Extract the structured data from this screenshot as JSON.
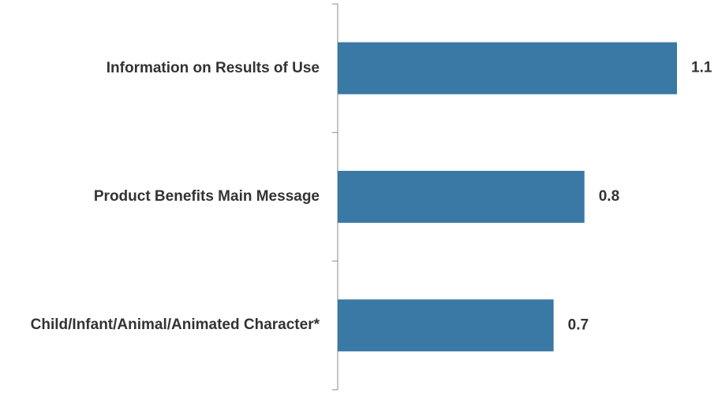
{
  "chart_data": {
    "type": "hbar",
    "categories": [
      "Information on Results of Use",
      "Product Benefits Main Message",
      "Child/Infant/Animal/Animated Character*"
    ],
    "values": [
      1.1,
      0.8,
      0.7
    ],
    "color": "#3a78a5"
  }
}
